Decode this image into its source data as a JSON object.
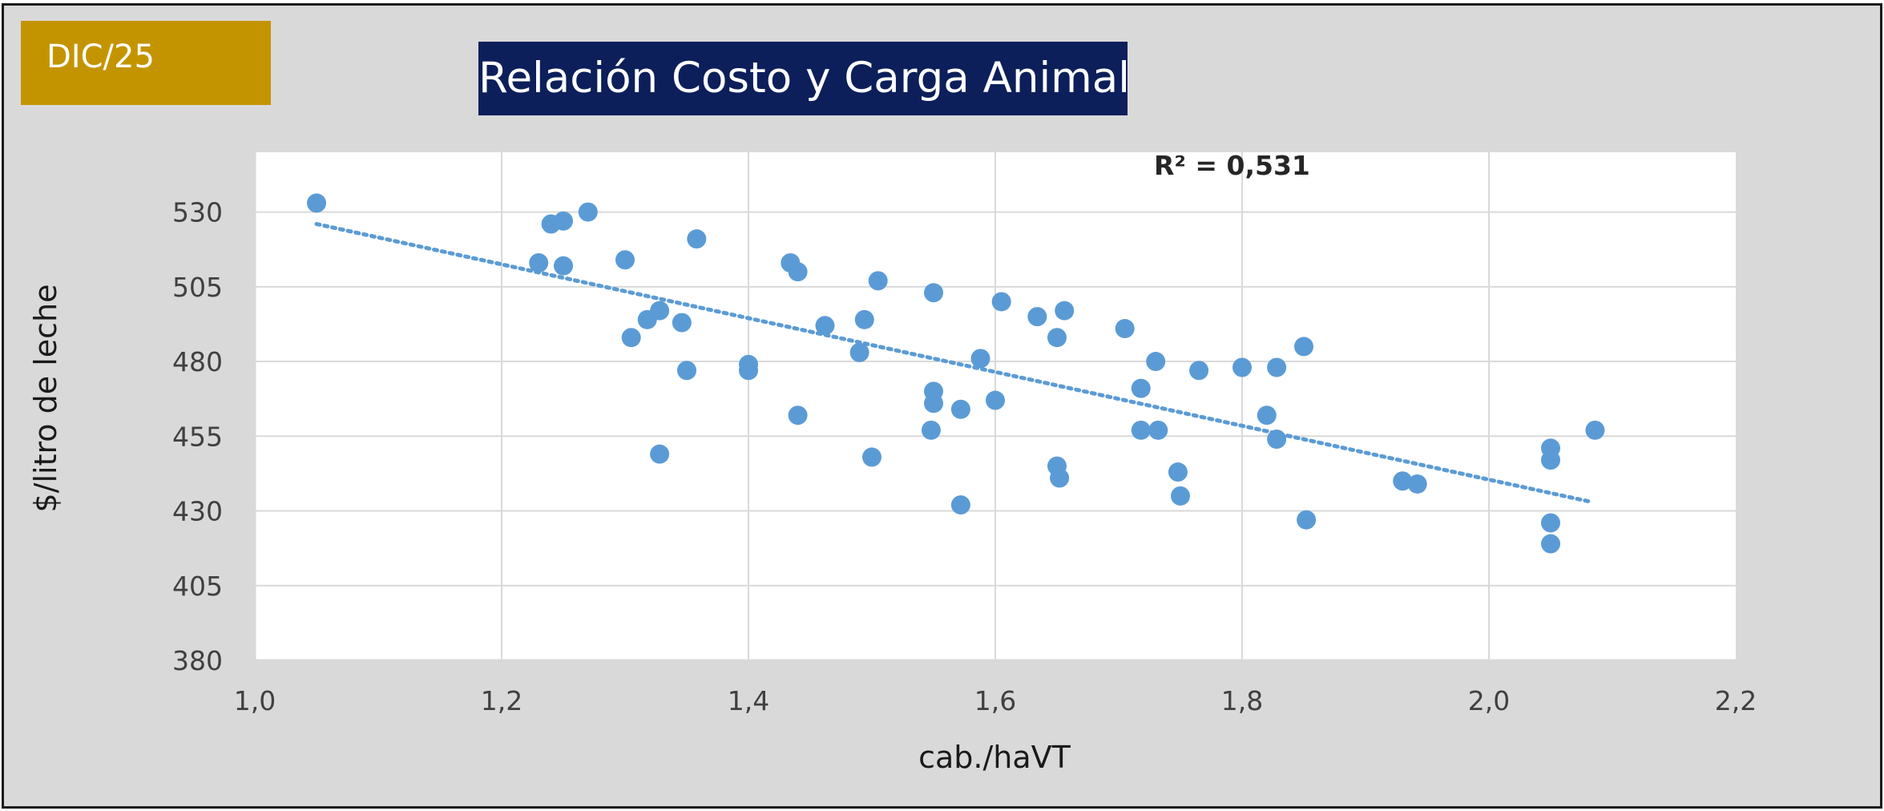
{
  "badge": {
    "label": "DIC/25"
  },
  "chart_data": {
    "type": "scatter",
    "title": "Relación Costo y Carga Animal",
    "xlabel": "cab./haVT",
    "ylabel": "$/litro de leche",
    "xlim": [
      1.0,
      2.2
    ],
    "ylim": [
      380,
      550
    ],
    "x_ticks": [
      "1,0",
      "1,2",
      "1,4",
      "1,6",
      "1,8",
      "2,0",
      "2,2"
    ],
    "x_tick_values": [
      1.0,
      1.2,
      1.4,
      1.6,
      1.8,
      2.0,
      2.2
    ],
    "y_ticks": [
      "380",
      "405",
      "430",
      "455",
      "480",
      "505",
      "530"
    ],
    "y_tick_values": [
      380,
      405,
      430,
      455,
      480,
      505,
      530
    ],
    "grid": true,
    "annotation": "R² = 0,531",
    "point_color": "#5b9bd5",
    "trendline": {
      "style": "dotted",
      "x": [
        1.05,
        2.083
      ],
      "y": [
        526,
        433
      ]
    },
    "points": [
      {
        "x": 1.05,
        "y": 533
      },
      {
        "x": 1.24,
        "y": 526
      },
      {
        "x": 1.25,
        "y": 527
      },
      {
        "x": 1.27,
        "y": 530
      },
      {
        "x": 1.23,
        "y": 513
      },
      {
        "x": 1.25,
        "y": 512
      },
      {
        "x": 1.3,
        "y": 514
      },
      {
        "x": 1.358,
        "y": 521
      },
      {
        "x": 1.318,
        "y": 494
      },
      {
        "x": 1.328,
        "y": 497
      },
      {
        "x": 1.305,
        "y": 488
      },
      {
        "x": 1.346,
        "y": 493
      },
      {
        "x": 1.35,
        "y": 477
      },
      {
        "x": 1.328,
        "y": 449
      },
      {
        "x": 1.4,
        "y": 479
      },
      {
        "x": 1.4,
        "y": 477
      },
      {
        "x": 1.434,
        "y": 513
      },
      {
        "x": 1.44,
        "y": 510
      },
      {
        "x": 1.44,
        "y": 462
      },
      {
        "x": 1.462,
        "y": 492
      },
      {
        "x": 1.49,
        "y": 483
      },
      {
        "x": 1.494,
        "y": 494
      },
      {
        "x": 1.505,
        "y": 507
      },
      {
        "x": 1.5,
        "y": 448
      },
      {
        "x": 1.55,
        "y": 503
      },
      {
        "x": 1.55,
        "y": 470
      },
      {
        "x": 1.55,
        "y": 466
      },
      {
        "x": 1.548,
        "y": 457
      },
      {
        "x": 1.572,
        "y": 464
      },
      {
        "x": 1.588,
        "y": 481
      },
      {
        "x": 1.6,
        "y": 467
      },
      {
        "x": 1.605,
        "y": 500
      },
      {
        "x": 1.572,
        "y": 432
      },
      {
        "x": 1.634,
        "y": 495
      },
      {
        "x": 1.656,
        "y": 497
      },
      {
        "x": 1.65,
        "y": 488
      },
      {
        "x": 1.65,
        "y": 445
      },
      {
        "x": 1.652,
        "y": 441
      },
      {
        "x": 1.705,
        "y": 491
      },
      {
        "x": 1.718,
        "y": 471
      },
      {
        "x": 1.73,
        "y": 480
      },
      {
        "x": 1.718,
        "y": 457
      },
      {
        "x": 1.732,
        "y": 457
      },
      {
        "x": 1.748,
        "y": 443
      },
      {
        "x": 1.75,
        "y": 435
      },
      {
        "x": 1.765,
        "y": 477
      },
      {
        "x": 1.8,
        "y": 478
      },
      {
        "x": 1.828,
        "y": 478
      },
      {
        "x": 1.82,
        "y": 462
      },
      {
        "x": 1.828,
        "y": 454
      },
      {
        "x": 1.85,
        "y": 485
      },
      {
        "x": 1.852,
        "y": 427
      },
      {
        "x": 1.93,
        "y": 440
      },
      {
        "x": 1.942,
        "y": 439
      },
      {
        "x": 2.05,
        "y": 451
      },
      {
        "x": 2.05,
        "y": 447
      },
      {
        "x": 2.05,
        "y": 426
      },
      {
        "x": 2.05,
        "y": 419
      },
      {
        "x": 2.086,
        "y": 457
      }
    ]
  }
}
